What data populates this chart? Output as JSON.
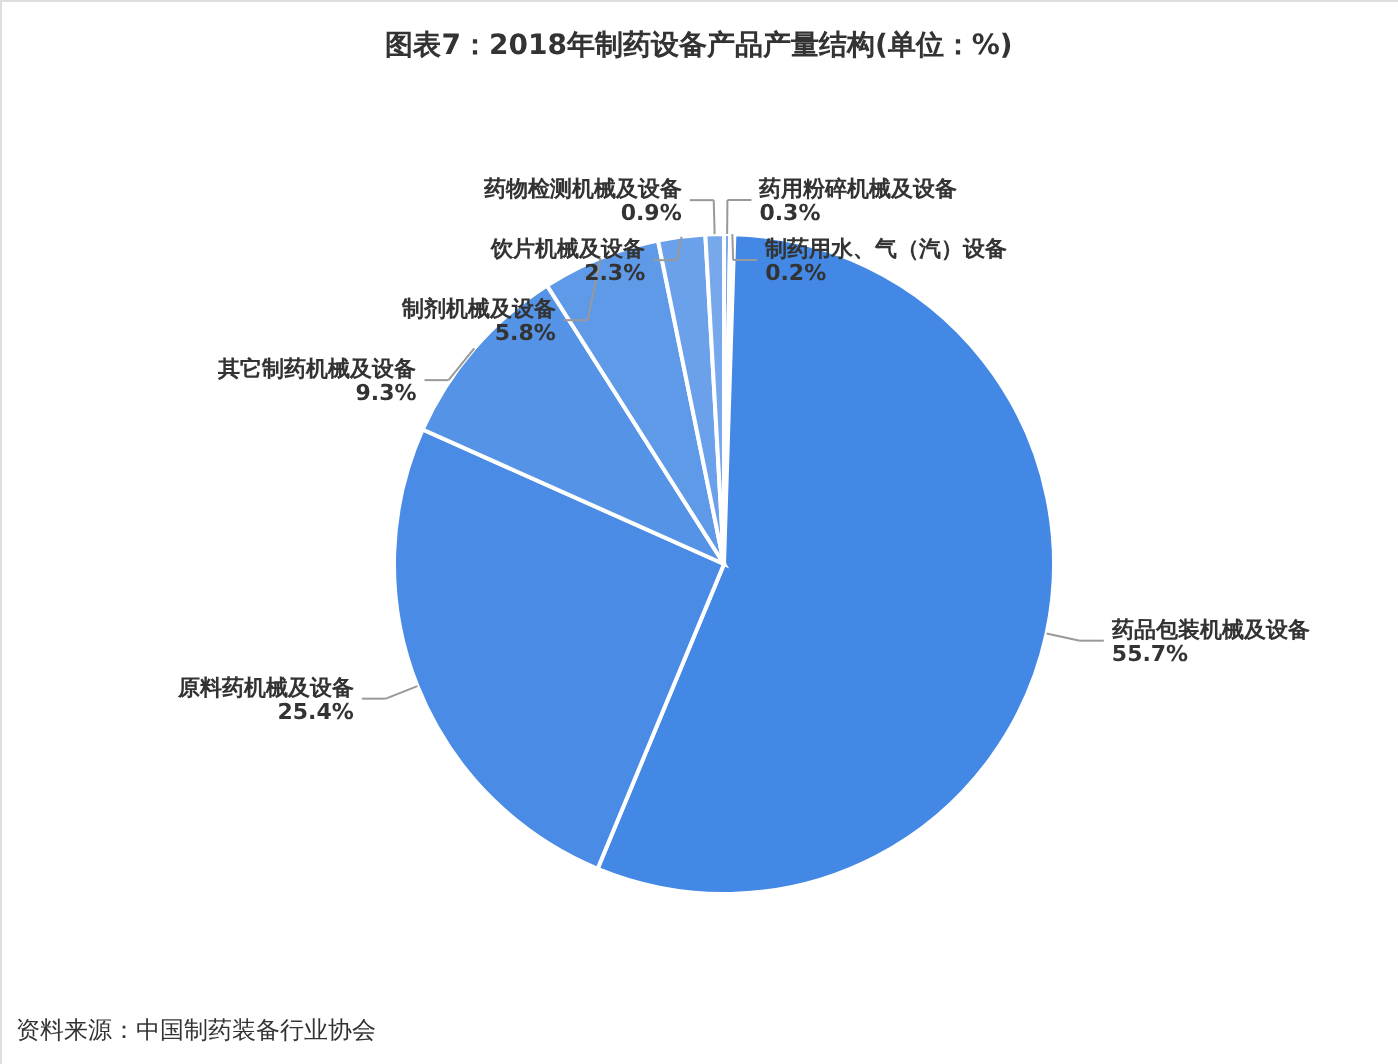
{
  "chart_data": {
    "type": "pie",
    "title": "图表7：2018年制药设备产品产量结构(单位：%)",
    "categories": [
      "药用粉碎机械及设备",
      "制药用水、气（汽）设备",
      "药品包装机械及设备",
      "原料药机械及设备",
      "其它制药机械及设备",
      "制剂机械及设备",
      "饮片机械及设备",
      "药物检测机械及设备"
    ],
    "values": [
      0.3,
      0.2,
      55.7,
      25.4,
      9.3,
      5.8,
      2.3,
      0.9
    ],
    "value_labels": [
      "0.3%",
      "0.2%",
      "55.7%",
      "25.4%",
      "9.3%",
      "5.8%",
      "2.3%",
      "0.9%"
    ],
    "colors": [
      "#7aa9ec",
      "#6ea2ea",
      "#4388e4",
      "#4a8ce5",
      "#5493e6",
      "#5f9ae8",
      "#6ba1ea",
      "#76a8eb"
    ],
    "annotations": [
      "资料来源：中国制药装备行业协会"
    ]
  }
}
